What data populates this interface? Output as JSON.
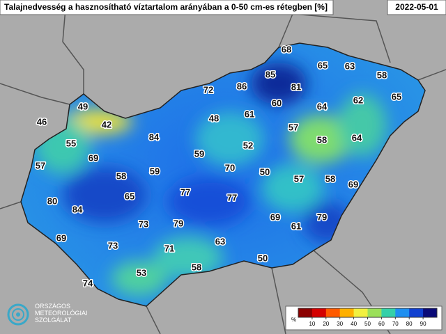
{
  "title": "Talajnedvesség a hasznosítható víztartalom arányában a 0-50 cm-es rétegben [%]",
  "date": "2022-05-01",
  "stations": [
    68,
    65,
    63,
    58,
    85,
    86,
    72,
    81,
    62,
    65,
    49,
    60,
    64,
    61,
    48,
    57,
    46,
    42,
    84,
    58,
    64,
    55,
    52,
    59,
    69,
    57,
    70,
    59,
    50,
    58,
    57,
    58,
    69,
    65,
    77,
    77,
    80,
    84,
    69,
    79,
    73,
    79,
    61,
    69,
    63,
    73,
    71,
    50,
    58,
    53,
    74
  ],
  "colorbar": {
    "label": "%",
    "ticks": [
      10,
      20,
      30,
      40,
      50,
      60,
      70,
      80,
      90
    ],
    "lim": [
      0,
      100
    ],
    "colors": [
      "#8b0000",
      "#d40000",
      "#ff5a00",
      "#ffb000",
      "#f2f040",
      "#9be05a",
      "#35d0a8",
      "#1e8ff0",
      "#1040d0",
      "#0a0a78"
    ]
  },
  "logo": [
    "ORSZÁGOS",
    "METEOROLÓGIAI",
    "SZOLGÁLAT"
  ]
}
